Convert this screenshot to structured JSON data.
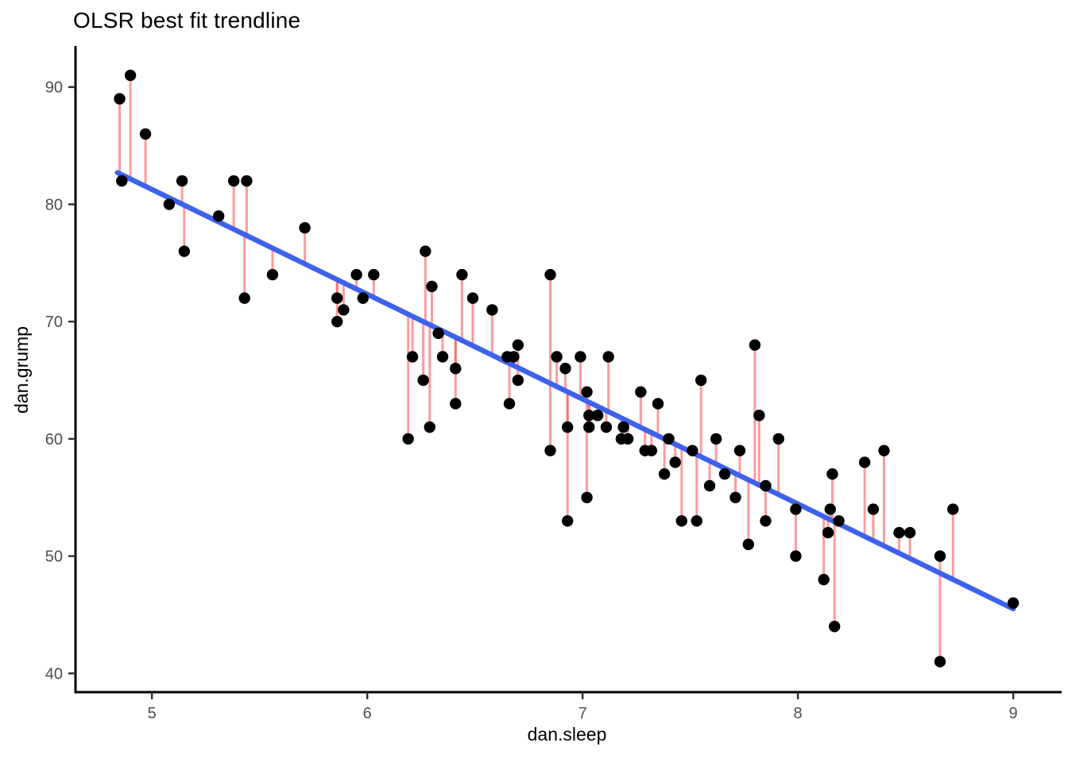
{
  "title": "OLSR best fit trendline",
  "x_axis": {
    "label": "dan.sleep",
    "ticks": [
      "5",
      "6",
      "7",
      "8",
      "9"
    ]
  },
  "y_axis": {
    "label": "dan.grump",
    "ticks": [
      "40",
      "50",
      "60",
      "70",
      "80",
      "90"
    ]
  },
  "colors": {
    "point": "#000000",
    "residual": "#f85a5a",
    "trendline": "#3e62ed",
    "axis": "#000000",
    "tick_text": "#4d4d4d"
  },
  "chart_data": {
    "type": "scatter",
    "title": "OLSR best fit trendline",
    "xlabel": "dan.sleep",
    "ylabel": "dan.grump",
    "xlim": [
      4.645,
      9.21
    ],
    "ylim": [
      38.4,
      93.5
    ],
    "x_ticks": [
      5,
      6,
      7,
      8,
      9
    ],
    "y_ticks": [
      40,
      50,
      60,
      70,
      80,
      90
    ],
    "grid": false,
    "legend": "none",
    "point_color": "#000000",
    "points": [
      [
        4.85,
        89
      ],
      [
        4.86,
        82
      ],
      [
        4.9,
        91
      ],
      [
        4.97,
        86
      ],
      [
        5.08,
        80
      ],
      [
        5.14,
        82
      ],
      [
        5.15,
        76
      ],
      [
        5.31,
        79
      ],
      [
        5.38,
        82
      ],
      [
        5.43,
        72
      ],
      [
        5.44,
        82
      ],
      [
        5.56,
        74
      ],
      [
        5.71,
        78
      ],
      [
        5.86,
        72
      ],
      [
        5.86,
        70
      ],
      [
        5.89,
        71
      ],
      [
        5.95,
        74
      ],
      [
        5.98,
        72
      ],
      [
        6.03,
        74
      ],
      [
        6.19,
        60
      ],
      [
        6.21,
        67
      ],
      [
        6.26,
        65
      ],
      [
        6.27,
        76
      ],
      [
        6.29,
        61
      ],
      [
        6.3,
        73
      ],
      [
        6.33,
        69
      ],
      [
        6.35,
        67
      ],
      [
        6.41,
        66
      ],
      [
        6.41,
        63
      ],
      [
        6.44,
        74
      ],
      [
        6.49,
        72
      ],
      [
        6.58,
        71
      ],
      [
        6.65,
        67
      ],
      [
        6.66,
        63
      ],
      [
        6.68,
        67
      ],
      [
        6.7,
        68
      ],
      [
        6.7,
        65
      ],
      [
        6.85,
        74
      ],
      [
        6.85,
        59
      ],
      [
        6.88,
        67
      ],
      [
        6.92,
        66
      ],
      [
        6.93,
        61
      ],
      [
        6.93,
        53
      ],
      [
        6.99,
        67
      ],
      [
        7.02,
        64
      ],
      [
        7.02,
        55
      ],
      [
        7.03,
        62
      ],
      [
        7.03,
        61
      ],
      [
        7.07,
        62
      ],
      [
        7.11,
        61
      ],
      [
        7.12,
        67
      ],
      [
        7.18,
        60
      ],
      [
        7.19,
        61
      ],
      [
        7.21,
        60
      ],
      [
        7.27,
        64
      ],
      [
        7.29,
        59
      ],
      [
        7.32,
        59
      ],
      [
        7.35,
        63
      ],
      [
        7.38,
        57
      ],
      [
        7.4,
        60
      ],
      [
        7.43,
        58
      ],
      [
        7.46,
        53
      ],
      [
        7.51,
        59
      ],
      [
        7.53,
        53
      ],
      [
        7.55,
        65
      ],
      [
        7.59,
        56
      ],
      [
        7.62,
        60
      ],
      [
        7.66,
        57
      ],
      [
        7.71,
        55
      ],
      [
        7.73,
        59
      ],
      [
        7.77,
        51
      ],
      [
        7.8,
        68
      ],
      [
        7.82,
        62
      ],
      [
        7.85,
        56
      ],
      [
        7.85,
        53
      ],
      [
        7.91,
        60
      ],
      [
        7.99,
        54
      ],
      [
        7.99,
        50
      ],
      [
        8.12,
        48
      ],
      [
        8.14,
        52
      ],
      [
        8.15,
        54
      ],
      [
        8.16,
        57
      ],
      [
        8.17,
        44
      ],
      [
        8.19,
        53
      ],
      [
        8.31,
        58
      ],
      [
        8.35,
        54
      ],
      [
        8.4,
        59
      ],
      [
        8.47,
        52
      ],
      [
        8.52,
        52
      ],
      [
        8.66,
        50
      ],
      [
        8.66,
        41
      ],
      [
        8.72,
        54
      ],
      [
        9.0,
        46
      ]
    ],
    "trendline": {
      "type": "ols",
      "slope": -8.94,
      "intercept": 125.97,
      "x_start": 4.84,
      "x_end": 9.0,
      "color": "#3e62ed"
    },
    "residuals": {
      "shown": true,
      "color": "#f85a5a",
      "opacity": 0.6
    }
  }
}
